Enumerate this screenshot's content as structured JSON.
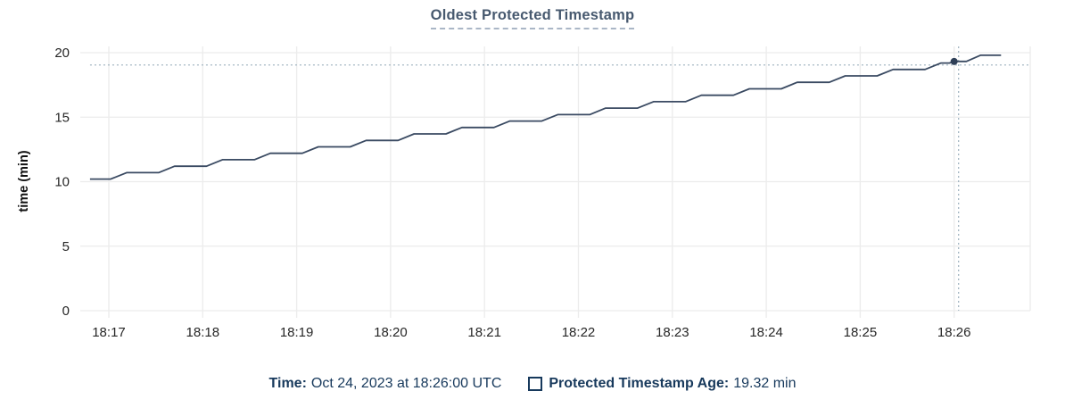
{
  "title": "Oldest Protected Timestamp",
  "y_axis": {
    "label": "time (min)",
    "ticks": [
      0,
      5,
      10,
      15,
      20
    ]
  },
  "x_axis": {
    "tick_labels": [
      "18:17",
      "18:18",
      "18:19",
      "18:20",
      "18:21",
      "18:22",
      "18:23",
      "18:24",
      "18:25",
      "18:26"
    ]
  },
  "footer": {
    "time_label": "Time:",
    "time_value": "Oct 24, 2023 at 18:26:00 UTC",
    "series_label": "Protected Timestamp Age:",
    "series_value": "19.32 min"
  },
  "colors": {
    "line": "#3a4a62",
    "point": "#2e3f57",
    "grid": "#ececec",
    "crosshair": "#9cb0bd",
    "tick_text": "#262626",
    "title_text": "#47596f",
    "footer_text": "#17395c"
  },
  "chart_data": {
    "type": "line",
    "title": "Oldest Protected Timestamp",
    "xlabel": "",
    "ylabel": "time (min)",
    "ylim": [
      0,
      20
    ],
    "grid": true,
    "legend_position": "bottom",
    "x_tick_labels": [
      "18:17",
      "18:18",
      "18:19",
      "18:20",
      "18:21",
      "18:22",
      "18:23",
      "18:24",
      "18:25",
      "18:26"
    ],
    "x_unit_note": "x values are minutes after 18:17",
    "series": [
      {
        "name": "Protected Timestamp Age",
        "shape": "staircase",
        "points": [
          [
            -0.2,
            10.2
          ],
          [
            0.02,
            10.2
          ],
          [
            0.19,
            10.7
          ],
          [
            0.53,
            10.7
          ],
          [
            0.7,
            11.2
          ],
          [
            1.04,
            11.2
          ],
          [
            1.21,
            11.7
          ],
          [
            1.55,
            11.7
          ],
          [
            1.72,
            12.2
          ],
          [
            2.06,
            12.2
          ],
          [
            2.23,
            12.7
          ],
          [
            2.57,
            12.7
          ],
          [
            2.74,
            13.2
          ],
          [
            3.08,
            13.2
          ],
          [
            3.25,
            13.7
          ],
          [
            3.59,
            13.7
          ],
          [
            3.76,
            14.2
          ],
          [
            4.1,
            14.2
          ],
          [
            4.27,
            14.7
          ],
          [
            4.61,
            14.7
          ],
          [
            4.78,
            15.2
          ],
          [
            5.12,
            15.2
          ],
          [
            5.29,
            15.7
          ],
          [
            5.63,
            15.7
          ],
          [
            5.8,
            16.2
          ],
          [
            6.14,
            16.2
          ],
          [
            6.31,
            16.7
          ],
          [
            6.65,
            16.7
          ],
          [
            6.82,
            17.2
          ],
          [
            7.16,
            17.2
          ],
          [
            7.33,
            17.7
          ],
          [
            7.67,
            17.7
          ],
          [
            7.84,
            18.2
          ],
          [
            8.18,
            18.2
          ],
          [
            8.35,
            18.7
          ],
          [
            8.69,
            18.7
          ],
          [
            8.86,
            19.2
          ],
          [
            8.95,
            19.2
          ],
          [
            9.0,
            19.32
          ],
          [
            9.13,
            19.32
          ],
          [
            9.28,
            19.8
          ],
          [
            9.5,
            19.8
          ]
        ]
      }
    ],
    "hover": {
      "x": 9.0,
      "x_label": "18:26",
      "value": 19.32
    }
  }
}
